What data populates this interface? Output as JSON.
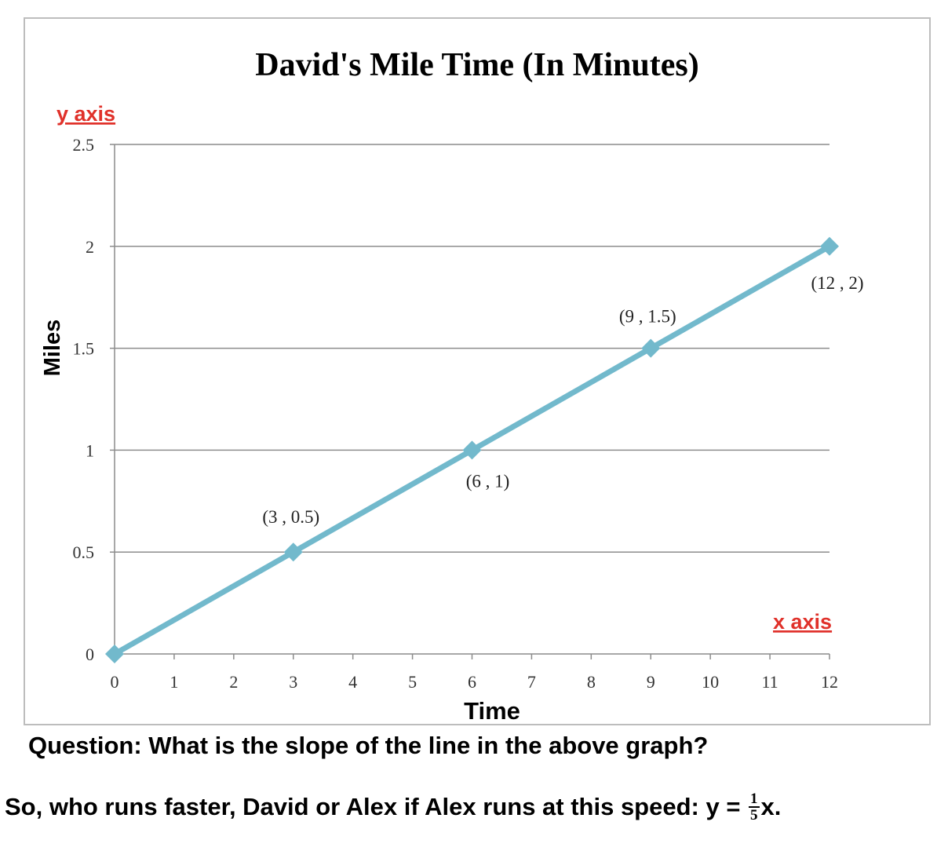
{
  "chart_data": {
    "type": "line",
    "title": "David's Mile Time (In Minutes)",
    "xlabel": "Time",
    "ylabel": "Miles",
    "xlim": [
      0,
      12
    ],
    "ylim": [
      0,
      2.5
    ],
    "x_ticks": [
      "0",
      "1",
      "2",
      "3",
      "4",
      "5",
      "6",
      "7",
      "8",
      "9",
      "10",
      "11",
      "12"
    ],
    "y_ticks": [
      "0",
      "0.5",
      "1",
      "1.5",
      "2",
      "2.5"
    ],
    "grid": "horizontal",
    "series": [
      {
        "x": [
          0,
          3,
          6,
          9,
          12
        ],
        "y": [
          0,
          0.5,
          1,
          1.5,
          2
        ],
        "color": "#72b9cc"
      }
    ],
    "annotations": [
      {
        "text": "(3 , 0.5)",
        "x": 3,
        "y": 0.5
      },
      {
        "text": "(6 , 1)",
        "x": 6,
        "y": 1
      },
      {
        "text": "(9 , 1.5)",
        "x": 9,
        "y": 1.5
      },
      {
        "text": "(12 , 2)",
        "x": 12,
        "y": 2
      }
    ],
    "axis_callouts": {
      "y": "y axis",
      "x": "x axis",
      "color": "#e0312a"
    }
  },
  "question": "Question:  What is the slope of the line in the above graph?",
  "followup": {
    "text": "So, who runs faster, David or Alex if Alex runs at this speed: y = ",
    "frac_num": "1",
    "frac_den": "5",
    "suffix": "x."
  }
}
